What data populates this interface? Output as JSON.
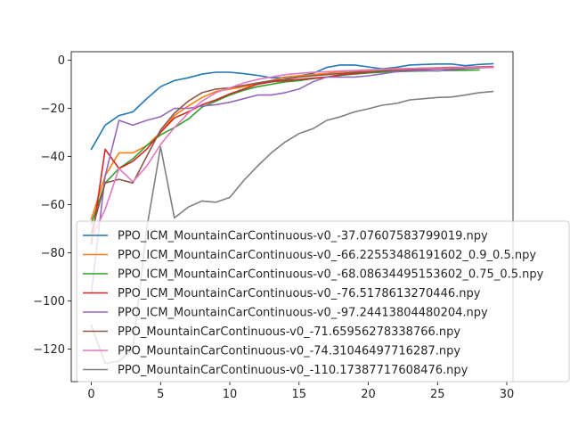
{
  "chart_data": {
    "type": "line",
    "title": "",
    "xlabel": "",
    "ylabel": "",
    "xlim": [
      -1.45,
      30.45
    ],
    "ylim": [
      -133.5,
      3.5
    ],
    "xticks": [
      0,
      5,
      10,
      15,
      20,
      25,
      30
    ],
    "yticks": [
      0,
      -20,
      -40,
      -60,
      -80,
      -100,
      -120
    ],
    "grid": false,
    "legend_position": "lower-left",
    "series": [
      {
        "name": "PPO_ICM_MountainCarContinuous-v0_-37.07607583799019.npy",
        "color": "#1f77b4",
        "x": [
          0,
          1,
          2,
          3,
          4,
          5,
          6,
          7,
          8,
          9,
          10,
          11,
          12,
          13,
          14,
          15,
          16,
          17,
          18,
          19,
          20,
          21,
          22,
          23,
          24,
          25,
          26,
          27,
          28,
          29
        ],
        "y": [
          -37,
          -27,
          -23,
          -21.5,
          -16,
          -11,
          -8.5,
          -7.3,
          -5.8,
          -5,
          -5,
          -5.6,
          -6.3,
          -7.3,
          -7.3,
          -6.5,
          -5.5,
          -3,
          -2,
          -2,
          -2.8,
          -3.6,
          -3,
          -2,
          -1.8,
          -1.6,
          -1.6,
          -2.3,
          -1.8,
          -1.5
        ]
      },
      {
        "name": "PPO_ICM_MountainCarContinuous-v0_-66.22553486191602_0.9_0.5.npy",
        "color": "#ff7f0e",
        "x": [
          0,
          1,
          2,
          3,
          4,
          5,
          6,
          7,
          8,
          9,
          10,
          11,
          12,
          13,
          14,
          15,
          16,
          17,
          18,
          19,
          20,
          21,
          22,
          23,
          24,
          25,
          26,
          27,
          28,
          29
        ],
        "y": [
          -66,
          -48,
          -38.5,
          -38.5,
          -35.5,
          -30,
          -23,
          -19,
          -15.5,
          -13,
          -12,
          -11,
          -10,
          -8.5,
          -7,
          -6.5,
          -6,
          -5.5,
          -4.8,
          -4.5,
          -4.2,
          -3.8,
          -3.5,
          -3.5,
          -3.4,
          -3.3,
          -3.2,
          -3.2,
          -3.1,
          -3
        ]
      },
      {
        "name": "PPO_ICM_MountainCarContinuous-v0_-68.08634495153602_0.75_0.5.npy",
        "color": "#2ca02c",
        "x": [
          0,
          1,
          2,
          3,
          4,
          5,
          6,
          7,
          8,
          9,
          10,
          11,
          12,
          13,
          14,
          15,
          16,
          17,
          18,
          19,
          20,
          21,
          22,
          23,
          24,
          25,
          26,
          27,
          28
        ],
        "y": [
          -68,
          -51,
          -45,
          -41,
          -35.5,
          -31,
          -28,
          -24.5,
          -19.5,
          -17,
          -14.5,
          -12.5,
          -11,
          -10,
          -9,
          -8.5,
          -7.7,
          -7,
          -6.3,
          -5.8,
          -5.3,
          -5,
          -4.8,
          -4.6,
          -4.5,
          -4.4,
          -4.3,
          -4.2,
          -4.1
        ]
      },
      {
        "name": "PPO_ICM_MountainCarContinuous-v0_-76.5178613270446.npy",
        "color": "#d62728",
        "x": [
          0,
          1,
          2,
          3,
          4,
          5,
          6,
          7,
          8,
          9,
          10,
          11,
          12,
          13,
          14,
          15,
          16,
          17,
          18,
          19,
          20,
          21,
          22,
          23,
          24,
          25,
          26,
          27,
          28,
          29
        ],
        "y": [
          -76.5,
          -37,
          -45,
          -42,
          -37,
          -30,
          -24,
          -21.5,
          -18.5,
          -16.5,
          -14,
          -12,
          -10,
          -9,
          -8.5,
          -8,
          -7.5,
          -7,
          -6,
          -5.5,
          -5,
          -4.5,
          -4,
          -3.5,
          -3.3,
          -3.2,
          -3,
          -3,
          -2.8,
          -2.7
        ]
      },
      {
        "name": "PPO_ICM_MountainCarContinuous-v0_-97.24413804480204.npy",
        "color": "#9467bd",
        "x": [
          0,
          1,
          2,
          3,
          4,
          5,
          6,
          7,
          8,
          9,
          10,
          11,
          12,
          13,
          14,
          15,
          16,
          17,
          18,
          19,
          20,
          21,
          22,
          23,
          24,
          25,
          26,
          27,
          28,
          29
        ],
        "y": [
          -97,
          -48,
          -25,
          -27,
          -25,
          -23.5,
          -20,
          -20,
          -19,
          -18.5,
          -17.5,
          -16,
          -14.5,
          -14.5,
          -13.5,
          -12,
          -9,
          -7,
          -7,
          -7,
          -6.5,
          -5.7,
          -4.8,
          -4.5,
          -4.3,
          -4.5,
          -4,
          -3.5,
          -3.2,
          -3
        ]
      },
      {
        "name": "PPO_MountainCarContinuous-v0_-71.65956278338766.npy",
        "color": "#8c564b",
        "x": [
          0,
          1,
          2,
          3,
          4,
          5,
          6,
          7,
          8,
          9,
          10,
          11,
          12,
          13,
          14,
          15,
          16,
          17,
          18,
          19,
          20,
          21,
          22,
          23,
          24,
          25,
          26,
          27,
          28
        ],
        "y": [
          -71.7,
          -51,
          -49.5,
          -51,
          -40,
          -29,
          -22,
          -17,
          -13.5,
          -12,
          -11.5,
          -10.5,
          -9.5,
          -8.5,
          -8,
          -7,
          -6.5,
          -6,
          -5.5,
          -5,
          -4.8,
          -4.5,
          -4.2,
          -4,
          -3.8,
          -3.6,
          -3.5,
          -3.3,
          -3.2
        ]
      },
      {
        "name": "PPO_MountainCarContinuous-v0_-74.31046497716287.npy",
        "color": "#e377c2",
        "x": [
          0,
          1,
          2,
          3,
          4,
          5,
          6,
          7,
          8,
          9,
          10,
          11,
          12,
          13,
          14,
          15,
          16,
          17,
          18,
          19,
          20,
          21,
          22,
          23,
          24,
          25,
          26,
          27,
          28,
          29
        ],
        "y": [
          -74,
          -62,
          -45,
          -50.5,
          -44,
          -35,
          -28,
          -22,
          -17,
          -13.5,
          -11.5,
          -9.5,
          -8,
          -7,
          -6,
          -5.5,
          -5,
          -4.8,
          -4.5,
          -4.3,
          -4,
          -3.8,
          -3.7,
          -3.5,
          -3.4,
          -3.3,
          -3.2,
          -3.1,
          -3,
          -2.9
        ]
      },
      {
        "name": "PPO_MountainCarContinuous-v0_-110.17387717608476.npy",
        "color": "#7f7f7f",
        "x": [
          0,
          1,
          2,
          3,
          4,
          5,
          6,
          7,
          8,
          9,
          10,
          11,
          12,
          13,
          14,
          15,
          16,
          17,
          18,
          19,
          20,
          21,
          22,
          23,
          24,
          25,
          26,
          27,
          28,
          29
        ],
        "y": [
          -110,
          -126,
          -125,
          -120,
          -70,
          -36,
          -65.5,
          -61,
          -58.5,
          -59,
          -57,
          -50,
          -44,
          -38.5,
          -34,
          -30.5,
          -28.5,
          -25,
          -23.5,
          -21.5,
          -20.2,
          -18.7,
          -18,
          -16.5,
          -16,
          -15.5,
          -15.3,
          -14.5,
          -13.5,
          -13
        ]
      }
    ]
  }
}
